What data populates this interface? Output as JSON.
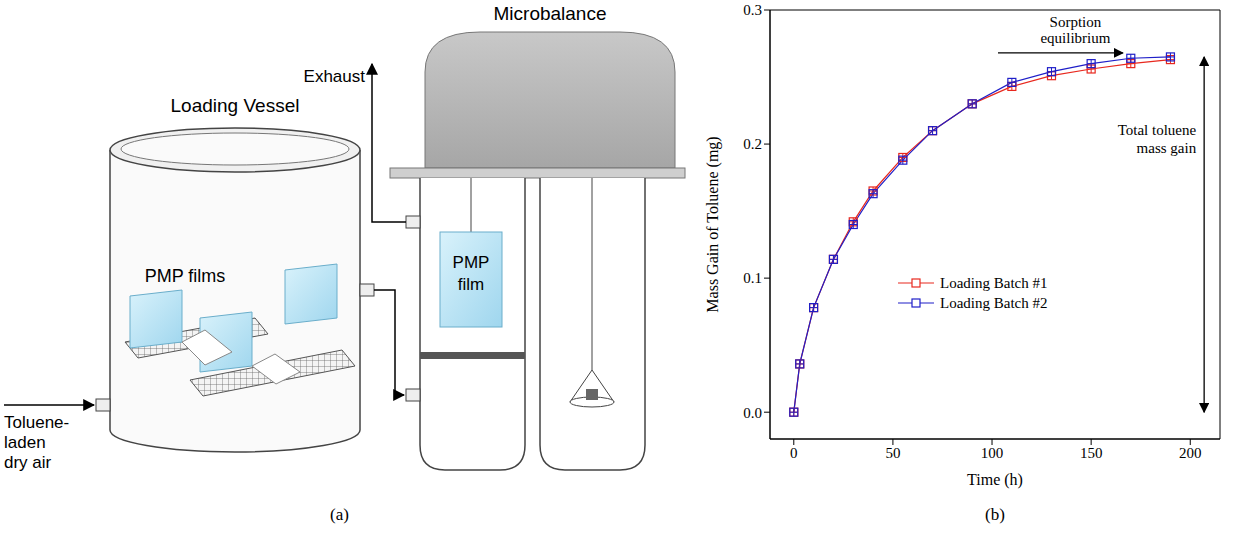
{
  "panels": [
    "(a)",
    "(b)"
  ],
  "diagram": {
    "loading_vessel": {
      "title": "Loading Vessel",
      "films_label": "PMP films",
      "inlet_label": [
        "Toluene-",
        "laden",
        "dry air"
      ]
    },
    "microbalance": {
      "title": "Microbalance",
      "exhaust_label": "Exhaust",
      "film_label": "PMP film"
    }
  },
  "chart_data": {
    "type": "line",
    "x": [
      0,
      3,
      10,
      20,
      30,
      40,
      55,
      70,
      90,
      110,
      130,
      150,
      170,
      190
    ],
    "series": [
      {
        "name": "Loading Batch #1",
        "color": "#e8281e",
        "values": [
          0,
          0.036,
          0.078,
          0.114,
          0.142,
          0.165,
          0.19,
          0.21,
          0.23,
          0.243,
          0.251,
          0.256,
          0.26,
          0.263
        ]
      },
      {
        "name": "Loading Batch #2",
        "color": "#1f1fc8",
        "values": [
          0,
          0.036,
          0.078,
          0.114,
          0.14,
          0.163,
          0.188,
          0.21,
          0.23,
          0.246,
          0.254,
          0.26,
          0.264,
          0.265
        ]
      }
    ],
    "x_label": "Time (h)",
    "y_label": "Mass Gain of Toluene (mg)",
    "xlim": [
      -12,
      215
    ],
    "ylim": [
      -0.02,
      0.3
    ],
    "xticks": [
      0,
      50,
      100,
      150,
      200
    ],
    "yticks": [
      {
        "value": 0,
        "label": "0.0"
      },
      {
        "value": 0.1,
        "label": "0.1"
      },
      {
        "value": 0.2,
        "label": "0.2"
      },
      {
        "value": 0.3,
        "label": "0.3"
      }
    ],
    "grid": false,
    "legend": "lower center",
    "marker": "square",
    "annotations": [
      "Sorption equilibrium",
      "Total toluene mass gain"
    ]
  }
}
